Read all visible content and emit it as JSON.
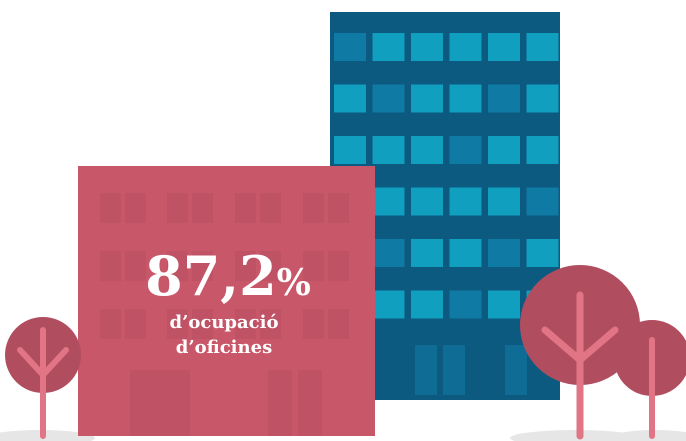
{
  "stat": {
    "number": "87,2",
    "unit": "%",
    "label_lines": [
      "d’ocupació",
      "d’oficines"
    ]
  }
}
